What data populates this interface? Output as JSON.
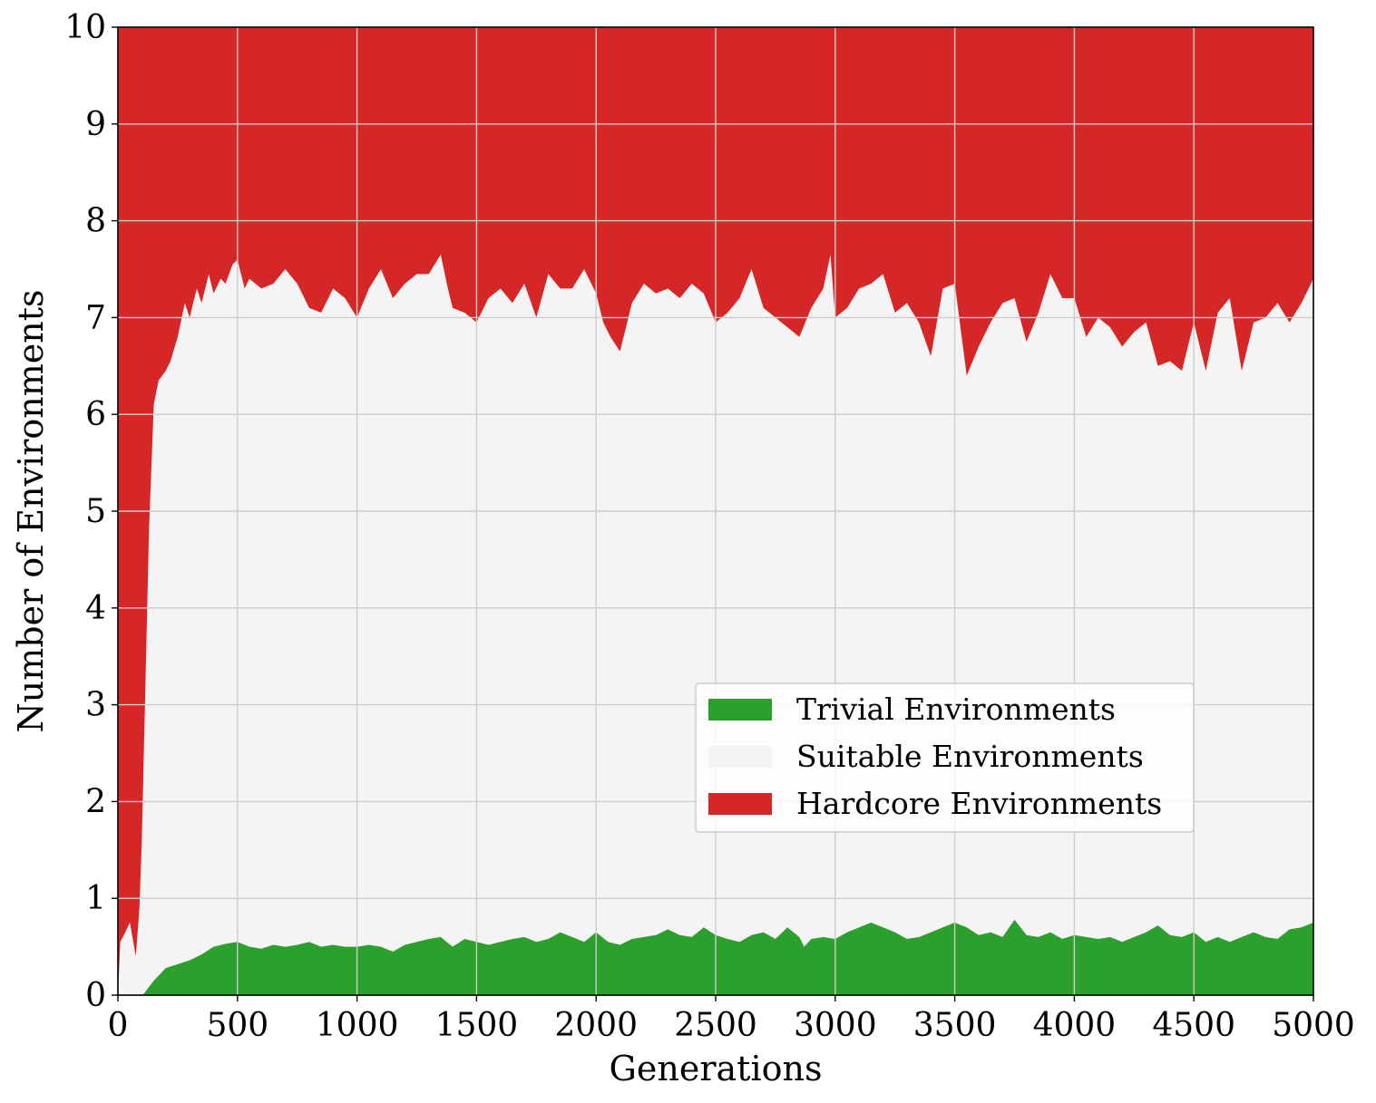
{
  "chart_data": {
    "type": "area",
    "stacked": true,
    "title": "",
    "xlabel": "Generations",
    "ylabel": "Number of Environments",
    "xlim": [
      0,
      5000
    ],
    "ylim": [
      0,
      10
    ],
    "xticks": [
      "0",
      "500",
      "1000",
      "1500",
      "2000",
      "2500",
      "3000",
      "3500",
      "4000",
      "4500",
      "5000"
    ],
    "yticks": [
      "0",
      "1",
      "2",
      "3",
      "4",
      "5",
      "6",
      "7",
      "8",
      "9",
      "10"
    ],
    "grid": true,
    "legend_position": "lower-right",
    "series": [
      {
        "name": "Trivial Environments",
        "color": "#2ca02c",
        "x": [
          0,
          50,
          100,
          110,
          150,
          200,
          250,
          300,
          350,
          400,
          450,
          500,
          550,
          600,
          650,
          700,
          750,
          800,
          850,
          900,
          950,
          1000,
          1050,
          1100,
          1150,
          1200,
          1250,
          1300,
          1350,
          1400,
          1450,
          1500,
          1550,
          1600,
          1650,
          1700,
          1750,
          1800,
          1850,
          1900,
          1950,
          2000,
          2050,
          2100,
          2150,
          2200,
          2250,
          2300,
          2350,
          2400,
          2450,
          2500,
          2550,
          2600,
          2650,
          2700,
          2750,
          2800,
          2850,
          2870,
          2900,
          2950,
          3000,
          3050,
          3100,
          3150,
          3200,
          3250,
          3300,
          3350,
          3400,
          3450,
          3500,
          3550,
          3600,
          3650,
          3700,
          3750,
          3800,
          3850,
          3900,
          3950,
          4000,
          4050,
          4100,
          4150,
          4200,
          4250,
          4300,
          4350,
          4400,
          4450,
          4500,
          4550,
          4600,
          4650,
          4700,
          4750,
          4800,
          4850,
          4900,
          4950,
          5000
        ],
        "values": [
          0,
          0,
          0,
          0.02,
          0.15,
          0.28,
          0.32,
          0.36,
          0.42,
          0.5,
          0.53,
          0.55,
          0.5,
          0.48,
          0.52,
          0.5,
          0.52,
          0.55,
          0.5,
          0.52,
          0.5,
          0.5,
          0.52,
          0.5,
          0.45,
          0.52,
          0.55,
          0.58,
          0.6,
          0.5,
          0.58,
          0.55,
          0.52,
          0.55,
          0.58,
          0.6,
          0.55,
          0.58,
          0.65,
          0.6,
          0.55,
          0.65,
          0.55,
          0.52,
          0.58,
          0.6,
          0.62,
          0.68,
          0.62,
          0.6,
          0.7,
          0.62,
          0.58,
          0.55,
          0.62,
          0.65,
          0.58,
          0.7,
          0.6,
          0.5,
          0.58,
          0.6,
          0.58,
          0.65,
          0.7,
          0.75,
          0.7,
          0.65,
          0.58,
          0.6,
          0.65,
          0.7,
          0.75,
          0.7,
          0.62,
          0.65,
          0.6,
          0.78,
          0.62,
          0.6,
          0.65,
          0.58,
          0.62,
          0.6,
          0.58,
          0.6,
          0.55,
          0.6,
          0.65,
          0.72,
          0.62,
          0.6,
          0.65,
          0.55,
          0.6,
          0.55,
          0.6,
          0.65,
          0.6,
          0.58,
          0.68,
          0.7,
          0.75
        ]
      },
      {
        "name": "Suitable Environments",
        "color": "#f4f4f4",
        "x": [
          0,
          10,
          25,
          50,
          75,
          90,
          100,
          115,
          130,
          150,
          170,
          200,
          220,
          250,
          280,
          300,
          330,
          350,
          380,
          400,
          430,
          450,
          480,
          500,
          530,
          550,
          600,
          650,
          700,
          750,
          800,
          850,
          900,
          950,
          1000,
          1050,
          1100,
          1150,
          1200,
          1250,
          1300,
          1350,
          1380,
          1400,
          1450,
          1500,
          1550,
          1600,
          1650,
          1700,
          1750,
          1800,
          1850,
          1900,
          1950,
          2000,
          2030,
          2060,
          2100,
          2150,
          2200,
          2250,
          2300,
          2350,
          2400,
          2450,
          2500,
          2550,
          2600,
          2650,
          2700,
          2750,
          2800,
          2850,
          2900,
          2950,
          2980,
          3000,
          3050,
          3100,
          3150,
          3200,
          3250,
          3300,
          3350,
          3400,
          3450,
          3500,
          3550,
          3600,
          3650,
          3700,
          3750,
          3800,
          3850,
          3900,
          3950,
          4000,
          4050,
          4100,
          4150,
          4200,
          4250,
          4300,
          4350,
          4400,
          4450,
          4500,
          4550,
          4600,
          4650,
          4700,
          4750,
          4800,
          4850,
          4900,
          4950,
          5000
        ],
        "values": [
          0,
          0.55,
          0.62,
          0.75,
          0.4,
          0.9,
          1.6,
          3.2,
          4.8,
          6.1,
          6.35,
          6.45,
          6.55,
          6.8,
          7.15,
          7.0,
          7.3,
          7.15,
          7.45,
          7.25,
          7.4,
          7.35,
          7.55,
          7.6,
          7.3,
          7.4,
          7.3,
          7.35,
          7.5,
          7.35,
          7.1,
          7.05,
          7.3,
          7.2,
          7.0,
          7.3,
          7.5,
          7.2,
          7.35,
          7.45,
          7.45,
          7.65,
          7.3,
          7.1,
          7.05,
          6.95,
          7.2,
          7.3,
          7.15,
          7.35,
          7.0,
          7.45,
          7.3,
          7.3,
          7.5,
          7.25,
          6.95,
          6.8,
          6.65,
          7.15,
          7.35,
          7.25,
          7.3,
          7.2,
          7.35,
          7.25,
          6.95,
          7.05,
          7.2,
          7.5,
          7.1,
          7.0,
          6.9,
          6.8,
          7.1,
          7.3,
          7.65,
          7.0,
          7.1,
          7.3,
          7.35,
          7.45,
          7.05,
          7.15,
          6.95,
          6.6,
          7.3,
          7.35,
          6.4,
          6.7,
          6.95,
          7.15,
          7.2,
          6.75,
          7.05,
          7.45,
          7.2,
          7.2,
          6.8,
          7.0,
          6.9,
          6.7,
          6.85,
          6.95,
          6.5,
          6.55,
          6.45,
          6.95,
          6.45,
          7.05,
          7.2,
          6.45,
          6.95,
          7.0,
          7.15,
          6.95,
          7.15,
          7.4
        ]
      },
      {
        "name": "Hardcore Environments",
        "color": "#d62728",
        "total": 10
      }
    ]
  }
}
